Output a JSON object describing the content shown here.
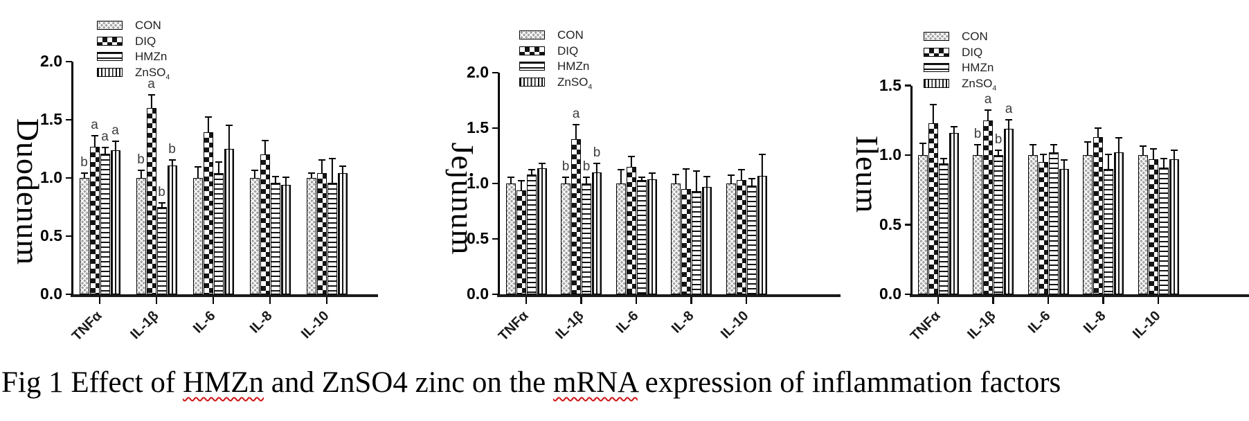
{
  "figure": {
    "caption_segments": [
      {
        "text": "Fig 1 Effect of "
      },
      {
        "text": "HMZn",
        "wavy_underline": true
      },
      {
        "text": " and ZnSO4 zinc on the "
      },
      {
        "text": "mRNA",
        "wavy_underline": true
      },
      {
        "text": " expression of inflammation factors"
      }
    ]
  },
  "colors": {
    "ink": "#111111",
    "sig_letter": "#3c3c3c",
    "wavy_underline": "#cc1111",
    "background": "#ffffff"
  },
  "legend": {
    "items": [
      {
        "name": "CON",
        "pattern": "crosshatch-gray",
        "label_parts": [
          {
            "t": "CON"
          }
        ]
      },
      {
        "name": "DIQ",
        "pattern": "checkerboard",
        "label_parts": [
          {
            "t": "DIQ"
          }
        ]
      },
      {
        "name": "HMZn",
        "pattern": "horizontal-stripes",
        "label_parts": [
          {
            "t": "HMZn"
          }
        ]
      },
      {
        "name": "ZnSO4",
        "pattern": "vertical-stripes",
        "label_parts": [
          {
            "t": "ZnSO"
          },
          {
            "t": "4",
            "sub": true
          }
        ]
      }
    ]
  },
  "chart_data": [
    {
      "type": "bar",
      "title": "Duodenum",
      "categories": [
        "TNFα",
        "IL-1β",
        "IL-6",
        "IL-8",
        "IL-10"
      ],
      "ylim": [
        0.0,
        2.0
      ],
      "yticks": [
        "0.0",
        "0.5",
        "1.0",
        "1.5",
        "2.0"
      ],
      "grid": false,
      "legend_position": "top-left-inside",
      "series": [
        {
          "name": "CON",
          "values": [
            1.0,
            1.0,
            1.0,
            1.0,
            1.0
          ],
          "errors": [
            0.05,
            0.07,
            0.1,
            0.07,
            0.05
          ],
          "letters": [
            "b",
            "b",
            "",
            "",
            ""
          ]
        },
        {
          "name": "DIQ",
          "values": [
            1.27,
            1.6,
            1.39,
            1.2,
            1.04
          ],
          "errors": [
            0.1,
            0.12,
            0.14,
            0.13,
            0.12
          ],
          "letters": [
            "a",
            "a",
            "",
            "",
            ""
          ]
        },
        {
          "name": "HMZn",
          "values": [
            1.21,
            0.75,
            1.04,
            0.96,
            0.96
          ],
          "errors": [
            0.06,
            0.04,
            0.1,
            0.06,
            0.21
          ],
          "letters": [
            "a",
            "b",
            "",
            "",
            ""
          ]
        },
        {
          "name": "ZnSO4",
          "values": [
            1.24,
            1.11,
            1.25,
            0.94,
            1.04
          ],
          "errors": [
            0.08,
            0.05,
            0.21,
            0.07,
            0.07
          ],
          "letters": [
            "a",
            "b",
            "",
            "",
            ""
          ]
        }
      ]
    },
    {
      "type": "bar",
      "title": "Jejunum",
      "categories": [
        "TNFα",
        "IL-1β",
        "IL-6",
        "IL-8",
        "IL-10"
      ],
      "ylim": [
        0.0,
        2.0
      ],
      "yticks": [
        "0.0",
        "0.5",
        "1.0",
        "1.5",
        "2.0"
      ],
      "grid": false,
      "legend_position": "top-left-inside",
      "series": [
        {
          "name": "CON",
          "values": [
            1.0,
            1.0,
            1.0,
            1.0,
            1.0
          ],
          "errors": [
            0.06,
            0.06,
            0.13,
            0.09,
            0.08
          ],
          "letters": [
            "",
            "b",
            "",
            "",
            ""
          ]
        },
        {
          "name": "DIQ",
          "values": [
            0.94,
            1.4,
            1.15,
            0.95,
            1.03
          ],
          "errors": [
            0.09,
            0.14,
            0.1,
            0.19,
            0.1
          ],
          "letters": [
            "",
            "a",
            "",
            "",
            ""
          ]
        },
        {
          "name": "HMZn",
          "values": [
            1.08,
            1.0,
            1.03,
            0.93,
            0.98
          ],
          "errors": [
            0.05,
            0.06,
            0.03,
            0.19,
            0.07
          ],
          "letters": [
            "",
            "b",
            "",
            "",
            ""
          ]
        },
        {
          "name": "ZnSO4",
          "values": [
            1.14,
            1.1,
            1.04,
            0.97,
            1.07
          ],
          "errors": [
            0.05,
            0.09,
            0.06,
            0.1,
            0.2
          ],
          "letters": [
            "",
            "b",
            "",
            "",
            ""
          ]
        }
      ]
    },
    {
      "type": "bar",
      "title": "Ileum",
      "categories": [
        "TNFα",
        "IL-1β",
        "IL-6",
        "IL-8",
        "IL-10"
      ],
      "ylim": [
        0.0,
        1.5
      ],
      "yticks": [
        "0.0",
        "0.5",
        "1.0",
        "1.5"
      ],
      "grid": false,
      "legend_position": "top-left-inside",
      "series": [
        {
          "name": "CON",
          "values": [
            1.0,
            1.0,
            1.0,
            1.0,
            1.0
          ],
          "errors": [
            0.09,
            0.08,
            0.08,
            0.1,
            0.07
          ],
          "letters": [
            "",
            "b",
            "",
            "",
            ""
          ]
        },
        {
          "name": "DIQ",
          "values": [
            1.23,
            1.25,
            0.95,
            1.13,
            0.97
          ],
          "errors": [
            0.14,
            0.08,
            0.06,
            0.07,
            0.08
          ],
          "letters": [
            "",
            "a",
            "",
            "",
            ""
          ]
        },
        {
          "name": "HMZn",
          "values": [
            0.94,
            1.0,
            1.02,
            0.9,
            0.91
          ],
          "errors": [
            0.04,
            0.04,
            0.06,
            0.11,
            0.07
          ],
          "letters": [
            "",
            "b",
            "",
            "",
            ""
          ]
        },
        {
          "name": "ZnSO4",
          "values": [
            1.16,
            1.19,
            0.9,
            1.02,
            0.97
          ],
          "errors": [
            0.05,
            0.07,
            0.07,
            0.11,
            0.07
          ],
          "letters": [
            "",
            "a",
            "",
            "",
            ""
          ]
        }
      ]
    }
  ]
}
